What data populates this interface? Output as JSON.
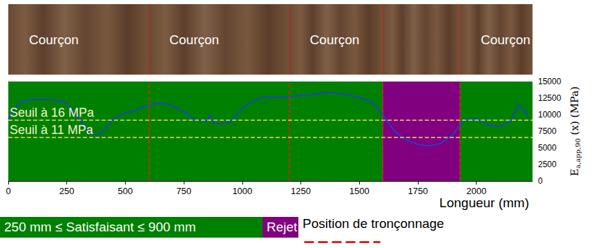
{
  "chart_data": {
    "type": "line",
    "x_label": "Longueur (mm)",
    "y_label": {
      "symbol": "E",
      "subscript": "a,app,90",
      "text": "(x) (MPa)"
    },
    "x": [
      0,
      50,
      100,
      150,
      200,
      250,
      300,
      350,
      375,
      400,
      450,
      500,
      550,
      600,
      650,
      700,
      750,
      800,
      850,
      860,
      880,
      900,
      950,
      1000,
      1050,
      1100,
      1150,
      1200,
      1250,
      1300,
      1350,
      1400,
      1450,
      1500,
      1550,
      1600,
      1650,
      1700,
      1750,
      1800,
      1850,
      1900,
      1930,
      1950,
      2000,
      2050,
      2100,
      2150,
      2180,
      2200,
      2220
    ],
    "values": [
      9300,
      12000,
      12300,
      12300,
      12200,
      11800,
      9500,
      7200,
      7000,
      7300,
      9500,
      10300,
      10700,
      11500,
      11800,
      11400,
      10500,
      9200,
      9000,
      10000,
      8700,
      8600,
      8900,
      11000,
      12200,
      12700,
      12600,
      12700,
      12900,
      13000,
      13400,
      13300,
      13000,
      12600,
      12000,
      10000,
      7500,
      6200,
      5500,
      5300,
      5700,
      7000,
      8500,
      9200,
      9500,
      8500,
      8200,
      9200,
      11500,
      10800,
      9700
    ],
    "color": "#1f3fd6",
    "xlim": [
      0,
      2240
    ],
    "xticks": [
      0,
      250,
      500,
      750,
      1000,
      1250,
      1500,
      1750,
      2000
    ],
    "ylim": [
      0,
      15000
    ],
    "yticks": [
      0,
      2500,
      5000,
      7500,
      10000,
      12500,
      15000
    ],
    "grid": false,
    "thresholds": [
      {
        "value": 9200,
        "label": "Seuil à 16 MPa",
        "color": "#e8dc5a"
      },
      {
        "value": 6600,
        "label": "Seuil à 11 MPa",
        "color": "#e8dc5a"
      }
    ],
    "zones": [
      {
        "label": "250 mm ≤ Satisfaisant ≤ 900 mm",
        "color": "#008000",
        "ranges": [
          [
            0,
            1600
          ],
          [
            1930,
            2240
          ]
        ]
      },
      {
        "label": "Rejet",
        "color": "#800080",
        "ranges": [
          [
            1600,
            1930
          ]
        ]
      }
    ],
    "cut_line": {
      "label": "Position de tronçonnage",
      "color": "#e02020",
      "positions": [
        600,
        1200,
        1600,
        1930
      ]
    },
    "board_labels": [
      "Courçon",
      "Courçon",
      "Courçon",
      null,
      "Courçon"
    ]
  }
}
